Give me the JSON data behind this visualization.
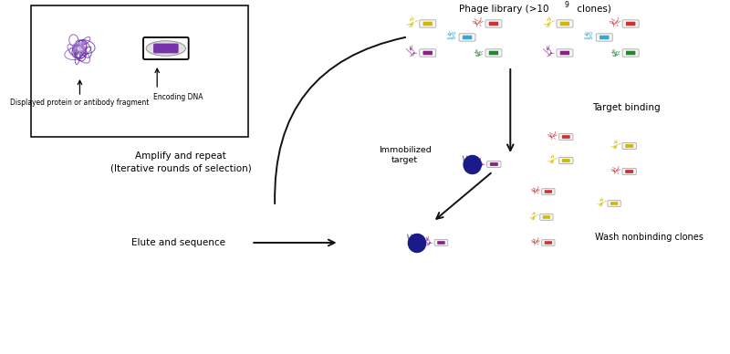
{
  "bg_color": "#ffffff",
  "phage_library_text": "Phage library (>10",
  "phage_library_sup": "9",
  "phage_library_text2": " clones)",
  "target_binding": "Target binding",
  "immobilized_target": "Immobilized\ntarget",
  "amplify_repeat": "Amplify and repeat\n(Iterative rounds of selection)",
  "elute_sequence": "Elute and sequence",
  "wash_nonbinding": "Wash nonbinding clones",
  "displayed_protein": "Displayed protein or antibody fragment",
  "encoding_dna": "Encoding DNA",
  "bead_color": "#1a1a88",
  "protein_purple": "#7733aa",
  "yellow": "#ccbb00",
  "red": "#cc3333",
  "teal": "#33aacc",
  "purple": "#882288",
  "green": "#228833",
  "surface_lines_color": "#888888",
  "arrow_color": "#111111",
  "box_edge_color": "#111111",
  "capsid_edge": "#aaaaaa",
  "capsid_fill": "#f5f5f5",
  "protein_squiggle_colors": {
    "yellow": [
      "#bbaa22",
      "#ccbb00",
      "#999911"
    ],
    "red": [
      "#cc3333",
      "#aa2222",
      "#dd4444"
    ],
    "teal": [
      "#33aacc",
      "#2299bb",
      "#44bbdd"
    ],
    "purple": [
      "#882288",
      "#771177",
      "#993399"
    ],
    "green": [
      "#228833",
      "#117722",
      "#339944"
    ]
  }
}
